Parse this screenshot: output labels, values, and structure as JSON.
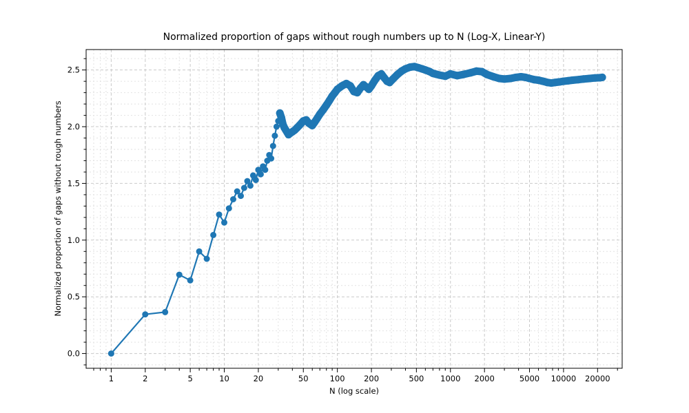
{
  "figure": {
    "title": "Normalized proportion of gaps without rough numbers up to N (Log-X, Linear-Y)",
    "xlabel": "N (log scale)",
    "ylabel": "Normalized proportion of gaps without rough numbers"
  },
  "chart_data": {
    "type": "line",
    "title": "Normalized proportion of gaps without rough numbers up to N (Log-X, Linear-Y)",
    "xlabel": "N (log scale)",
    "ylabel": "Normalized proportion of gaps without rough numbers",
    "x_scale": "log",
    "y_scale": "linear",
    "xlim": [
      0.6,
      33000
    ],
    "ylim": [
      -0.13,
      2.68
    ],
    "x_ticks": [
      1,
      2,
      5,
      10,
      20,
      50,
      100,
      200,
      500,
      1000,
      2000,
      5000,
      10000,
      20000
    ],
    "x_tick_labels": [
      "1",
      "2",
      "5",
      "10",
      "20",
      "50",
      "100",
      "200",
      "500",
      "1000",
      "2000",
      "5000",
      "10000",
      "20000"
    ],
    "x_minor_ticks": [
      0.7,
      0.8,
      0.9,
      3,
      4,
      6,
      7,
      8,
      9,
      30,
      40,
      60,
      70,
      80,
      90,
      300,
      400,
      600,
      700,
      800,
      900,
      3000,
      4000,
      6000,
      7000,
      8000,
      9000,
      30000
    ],
    "y_ticks": [
      0.0,
      0.5,
      1.0,
      1.5,
      2.0,
      2.5
    ],
    "y_tick_labels": [
      "0.0",
      "0.5",
      "1.0",
      "1.5",
      "2.0",
      "2.5"
    ],
    "y_minor_step": 0.1,
    "grid": true,
    "legend": "none",
    "line_color": "#1f77b4",
    "marker": "o",
    "marker_limit": 31,
    "points": [
      [
        1,
        0.0
      ],
      [
        2,
        0.345
      ],
      [
        3,
        0.365
      ],
      [
        4,
        0.695
      ],
      [
        5,
        0.645
      ],
      [
        6,
        0.9
      ],
      [
        7,
        0.835
      ],
      [
        8,
        1.045
      ],
      [
        9,
        1.225
      ],
      [
        10,
        1.155
      ],
      [
        11,
        1.28
      ],
      [
        12,
        1.36
      ],
      [
        13,
        1.43
      ],
      [
        14,
        1.39
      ],
      [
        15,
        1.46
      ],
      [
        16,
        1.52
      ],
      [
        17,
        1.48
      ],
      [
        18,
        1.57
      ],
      [
        19,
        1.53
      ],
      [
        20,
        1.62
      ],
      [
        21,
        1.58
      ],
      [
        22,
        1.65
      ],
      [
        23,
        1.62
      ],
      [
        24,
        1.7
      ],
      [
        25,
        1.75
      ],
      [
        26,
        1.72
      ],
      [
        27,
        1.83
      ],
      [
        28,
        1.92
      ],
      [
        29,
        2.0
      ],
      [
        30,
        2.05
      ],
      [
        31,
        2.12
      ],
      [
        32,
        2.08
      ],
      [
        33,
        2.02
      ],
      [
        34,
        1.99
      ],
      [
        35,
        1.97
      ],
      [
        36,
        1.95
      ],
      [
        37,
        1.93
      ],
      [
        38,
        1.94
      ],
      [
        40,
        1.955
      ],
      [
        42,
        1.97
      ],
      [
        44,
        1.99
      ],
      [
        46,
        2.01
      ],
      [
        48,
        2.03
      ],
      [
        50,
        2.05
      ],
      [
        53,
        2.06
      ],
      [
        56,
        2.03
      ],
      [
        60,
        2.01
      ],
      [
        63,
        2.04
      ],
      [
        66,
        2.07
      ],
      [
        70,
        2.11
      ],
      [
        75,
        2.15
      ],
      [
        80,
        2.19
      ],
      [
        85,
        2.23
      ],
      [
        90,
        2.27
      ],
      [
        95,
        2.3
      ],
      [
        100,
        2.33
      ],
      [
        110,
        2.36
      ],
      [
        120,
        2.38
      ],
      [
        130,
        2.36
      ],
      [
        140,
        2.31
      ],
      [
        150,
        2.3
      ],
      [
        160,
        2.34
      ],
      [
        170,
        2.37
      ],
      [
        180,
        2.35
      ],
      [
        190,
        2.33
      ],
      [
        200,
        2.36
      ],
      [
        215,
        2.41
      ],
      [
        230,
        2.45
      ],
      [
        245,
        2.465
      ],
      [
        260,
        2.43
      ],
      [
        275,
        2.4
      ],
      [
        290,
        2.39
      ],
      [
        310,
        2.42
      ],
      [
        340,
        2.46
      ],
      [
        370,
        2.49
      ],
      [
        400,
        2.51
      ],
      [
        440,
        2.525
      ],
      [
        480,
        2.53
      ],
      [
        520,
        2.52
      ],
      [
        560,
        2.51
      ],
      [
        600,
        2.5
      ],
      [
        650,
        2.487
      ],
      [
        700,
        2.47
      ],
      [
        750,
        2.462
      ],
      [
        800,
        2.455
      ],
      [
        850,
        2.45
      ],
      [
        900,
        2.445
      ],
      [
        1000,
        2.465
      ],
      [
        1150,
        2.45
      ],
      [
        1300,
        2.46
      ],
      [
        1500,
        2.475
      ],
      [
        1700,
        2.49
      ],
      [
        1900,
        2.485
      ],
      [
        2100,
        2.46
      ],
      [
        2400,
        2.44
      ],
      [
        2700,
        2.425
      ],
      [
        3000,
        2.42
      ],
      [
        3400,
        2.425
      ],
      [
        3800,
        2.435
      ],
      [
        4200,
        2.44
      ],
      [
        4600,
        2.435
      ],
      [
        5000,
        2.425
      ],
      [
        5500,
        2.415
      ],
      [
        6000,
        2.41
      ],
      [
        6600,
        2.4
      ],
      [
        7200,
        2.39
      ],
      [
        7800,
        2.385
      ],
      [
        8400,
        2.39
      ],
      [
        9200,
        2.395
      ],
      [
        10000,
        2.4
      ],
      [
        11000,
        2.405
      ],
      [
        12000,
        2.41
      ],
      [
        13500,
        2.415
      ],
      [
        15000,
        2.42
      ],
      [
        17000,
        2.425
      ],
      [
        19000,
        2.43
      ],
      [
        21000,
        2.432
      ],
      [
        22000,
        2.435
      ]
    ],
    "colors": {
      "series": "#1f77b4",
      "grid_major": "#c9c9c9",
      "grid_minor": "#e2e2e2",
      "spine": "#000000",
      "text": "#000000",
      "background": "#ffffff"
    }
  }
}
